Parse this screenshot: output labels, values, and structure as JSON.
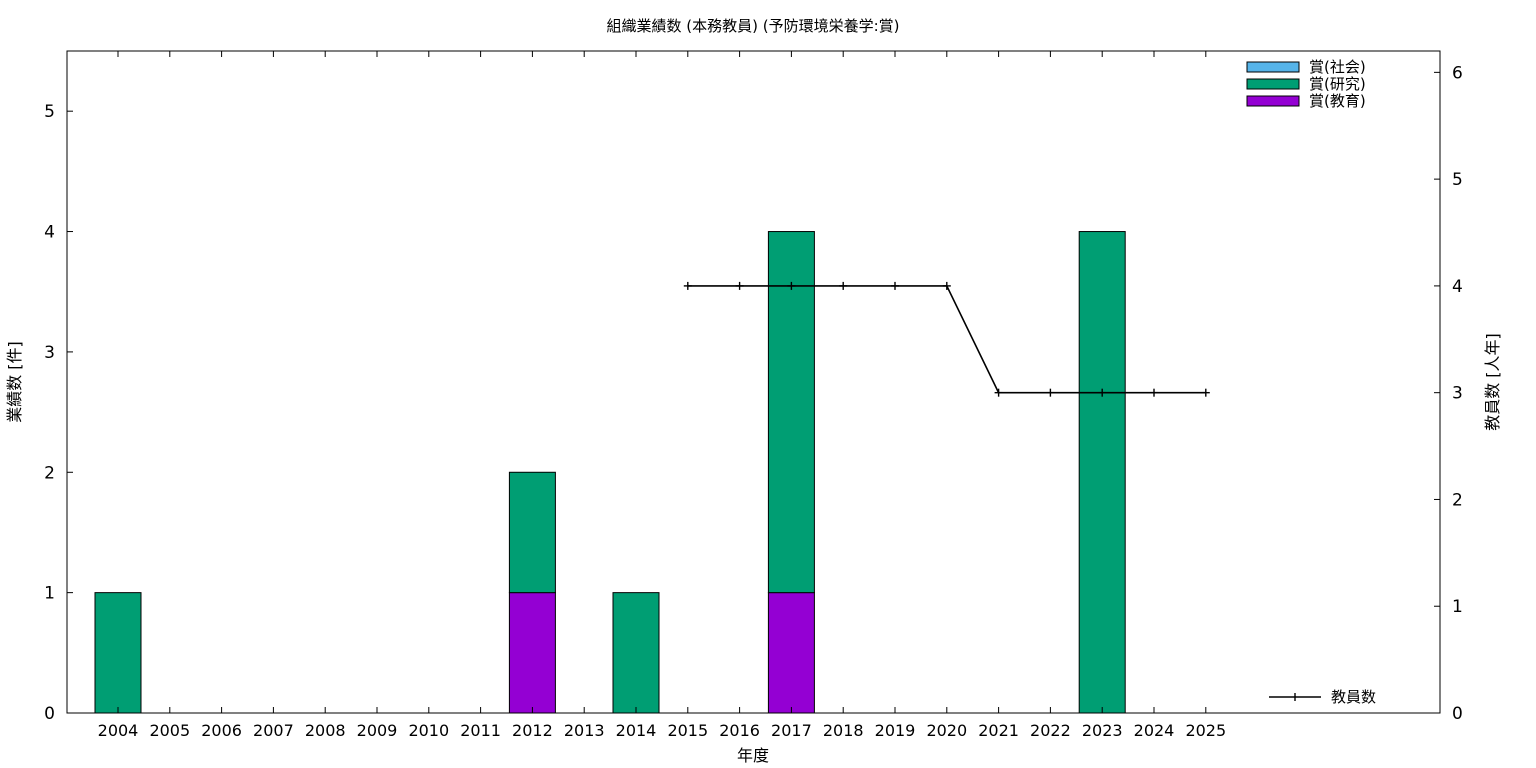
{
  "chart_data": {
    "type": "bar",
    "title": "組織業績数 (本務教員) (予防環境栄養学:賞)",
    "xlabel": "年度",
    "ylabel": "業績数 [件]",
    "y2label": "教員数 [人年]",
    "categories": [
      "2004",
      "2005",
      "2006",
      "2007",
      "2008",
      "2009",
      "2010",
      "2011",
      "2012",
      "2013",
      "2014",
      "2015",
      "2016",
      "2017",
      "2018",
      "2019",
      "2020",
      "2021",
      "2022",
      "2023",
      "2024",
      "2025"
    ],
    "ylim": [
      0,
      5.5
    ],
    "y2lim": [
      0,
      6.2
    ],
    "yticks": [
      0,
      1,
      2,
      3,
      4,
      5
    ],
    "y2ticks": [
      0,
      1,
      2,
      3,
      4,
      5,
      6
    ],
    "stacked": true,
    "series": [
      {
        "name": "賞(教育)",
        "color": "#9400d3",
        "values": [
          0,
          0,
          0,
          0,
          0,
          0,
          0,
          0,
          1,
          0,
          0,
          0,
          0,
          1,
          0,
          0,
          0,
          0,
          0,
          0,
          0,
          0
        ]
      },
      {
        "name": "賞(研究)",
        "color": "#009e73",
        "values": [
          1,
          0,
          0,
          0,
          0,
          0,
          0,
          0,
          1,
          0,
          1,
          0,
          0,
          3,
          0,
          0,
          0,
          0,
          0,
          4,
          0,
          0
        ]
      },
      {
        "name": "賞(社会)",
        "color": "#56b4e9",
        "values": [
          0,
          0,
          0,
          0,
          0,
          0,
          0,
          0,
          0,
          0,
          0,
          0,
          0,
          0,
          0,
          0,
          0,
          0,
          0,
          0,
          0,
          0
        ]
      }
    ],
    "line_series": {
      "name": "教員数",
      "color": "#000000",
      "x": [
        "2015",
        "2016",
        "2017",
        "2018",
        "2019",
        "2020",
        "2021",
        "2022",
        "2023",
        "2024",
        "2025"
      ],
      "values": [
        4,
        4,
        4,
        4,
        4,
        4,
        3,
        3,
        3,
        3,
        3
      ]
    },
    "legend_order": [
      "賞(社会)",
      "賞(研究)",
      "賞(教育)"
    ],
    "legend_placement": "top-right",
    "line_legend_placement": "bottom-right",
    "grid": false
  }
}
